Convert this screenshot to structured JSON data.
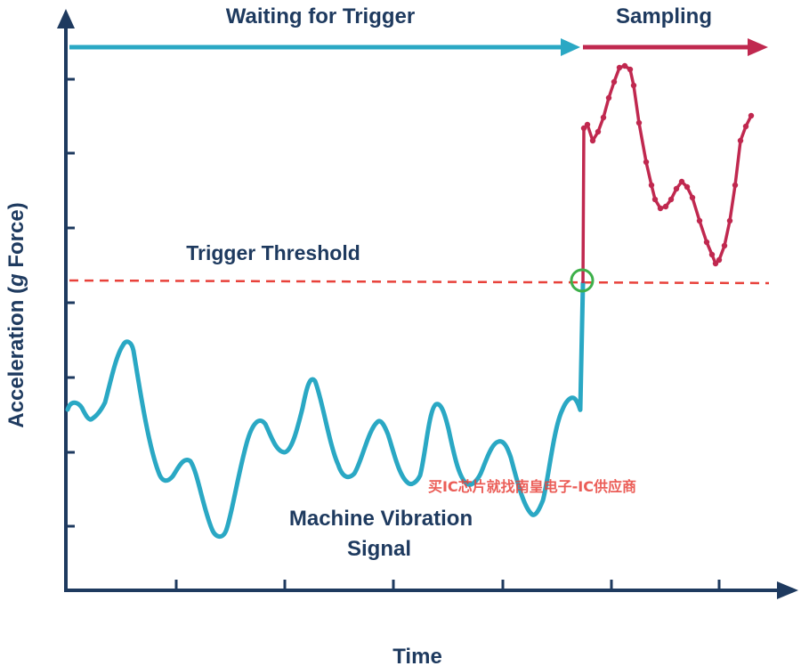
{
  "labels": {
    "waiting": "Waiting for Trigger",
    "sampling": "Sampling",
    "threshold": "Trigger Threshold",
    "signal_line1": "Machine Vibration",
    "signal_line2": "Signal",
    "x_axis": "Time",
    "y_axis_prefix": "Acceleration (",
    "y_axis_unit": "g",
    "y_axis_suffix": " Force)"
  },
  "watermark": "买IC芯片就找南皇电子-IC供应商",
  "colors": {
    "axis": "#1e3a5f",
    "signal": "#2aa8c4",
    "sampling": "#c0284f",
    "threshold": "#e8413a",
    "trigger_marker": "#3db04a",
    "label": "#1e3a5f",
    "watermark": "#e8413a"
  },
  "icons": {
    "trigger_point": "circle-marker-icon",
    "waiting_arrow": "arrow-right-icon",
    "sampling_arrow": "arrow-right-icon"
  }
}
